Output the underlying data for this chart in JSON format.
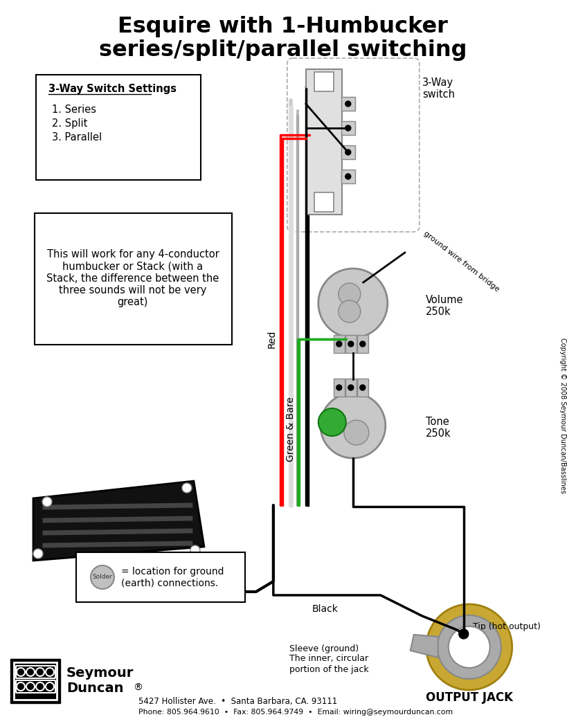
{
  "title_line1": "Esquire with 1-Humbucker",
  "title_line2": "series/split/parallel switching",
  "bg_color": "#ffffff",
  "switch_box_title": "3-Way Switch Settings",
  "switch_settings": [
    "1. Series",
    "2. Split",
    "3. Parallel"
  ],
  "info_text": "This will work for any 4-conductor\nhumbucker or Stack (with a\nStack, the difference between the\nthree sounds will not be very\ngreat)",
  "ground_label": "= location for ground\n(earth) connections.",
  "volume_label": "Volume\n250k",
  "tone_label": "Tone\n250k",
  "switch_label": "3-Way\nswitch",
  "output_jack_label": "OUTPUT JACK",
  "tip_label": "Tip (hot output)",
  "sleeve_label": "Sleeve (ground)\nThe inner, circular\nportion of the jack",
  "red_wire_label": "Red",
  "green_wire_label": "Green & Bare",
  "black_wire_label": "Black",
  "ground_bridge_label": "ground wire from bridge",
  "address": "5427 Hollister Ave.  •  Santa Barbara, CA. 93111",
  "phone": "Phone: 805.964.9610  •  Fax: 805.964.9749  •  Email: wiring@seymourduncan.com",
  "copyright": "Copyright © 2008 Seymour Duncan/Basslines",
  "solder_label": "Solder"
}
